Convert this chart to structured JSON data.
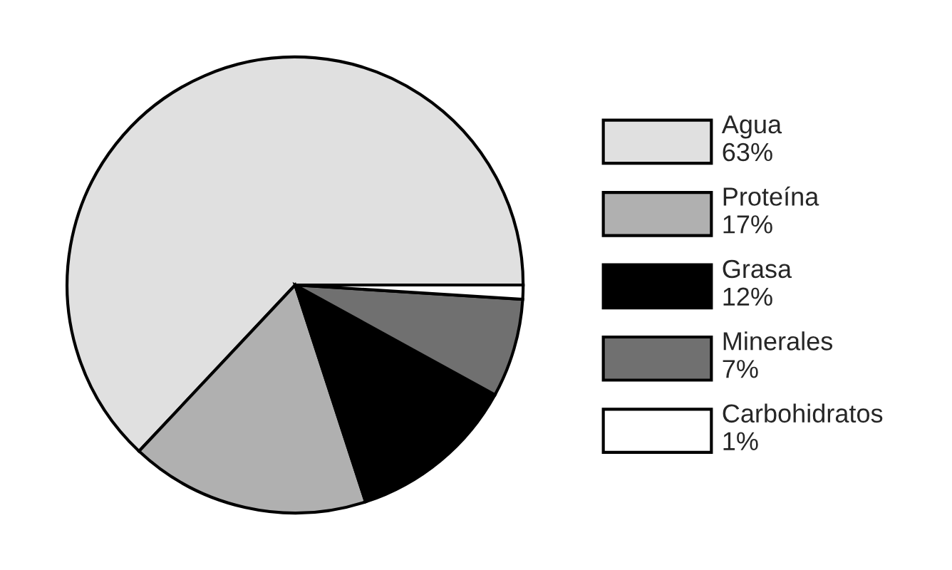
{
  "chart_data": {
    "type": "pie",
    "categories": [
      "Agua",
      "Proteína",
      "Grasa",
      "Minerales",
      "Carbohidratos"
    ],
    "values": [
      63,
      17,
      12,
      7,
      1
    ],
    "value_labels": [
      "63%",
      "17%",
      "12%",
      "7%",
      "1%"
    ],
    "colors": [
      "#e0e0e0",
      "#b0b0b0",
      "#000000",
      "#707070",
      "#ffffff"
    ],
    "legend": "right"
  }
}
